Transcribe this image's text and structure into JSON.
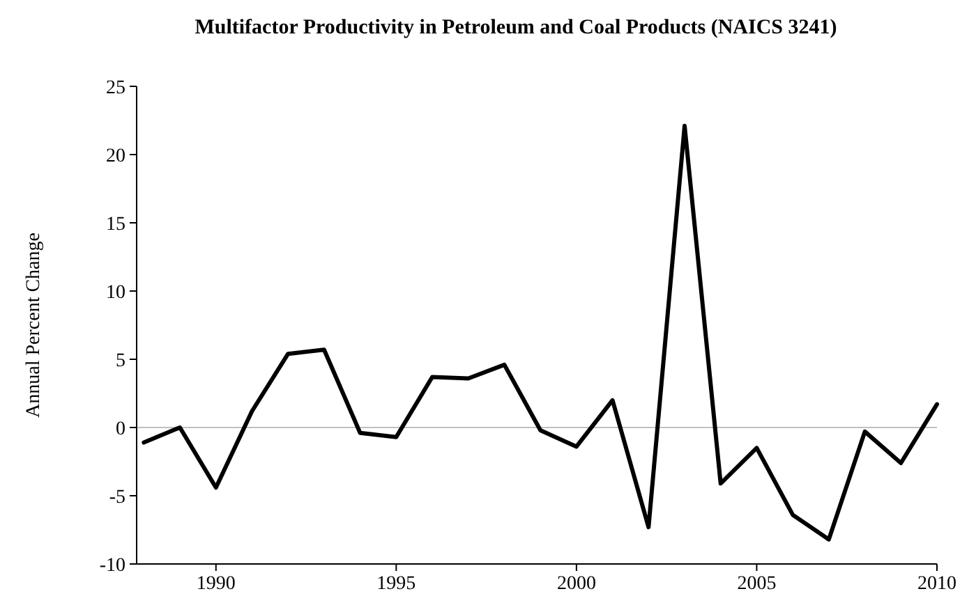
{
  "chart_data": {
    "type": "line",
    "title": "Multifactor Productivity in Petroleum and Coal Products (NAICS 3241)",
    "ylabel": "Annual Percent Change",
    "x": [
      1988,
      1989,
      1990,
      1991,
      1992,
      1993,
      1994,
      1995,
      1996,
      1997,
      1998,
      1999,
      2000,
      2001,
      2002,
      2003,
      2004,
      2005,
      2006,
      2007,
      2008,
      2009,
      2010
    ],
    "series": [
      {
        "color": "#000000",
        "values": [
          -1.1,
          0,
          -4.4,
          1.2,
          5.4,
          5.7,
          -0.4,
          -0.7,
          3.7,
          3.6,
          4.6,
          -0.2,
          -1.4,
          2.0,
          -7.3,
          22.1,
          -4.1,
          -1.5,
          -6.4,
          -8.2,
          -0.3,
          -2.6,
          1.7
        ]
      }
    ],
    "xlim": [
      1987.8,
      2010
    ],
    "xticks": [
      1990,
      1995,
      2000,
      2005,
      2010
    ],
    "ylim": [
      -10,
      25
    ],
    "yticks": [
      -10,
      -5,
      0,
      5,
      10,
      15,
      20,
      25
    ],
    "ref_lines": [
      {
        "axis": "y",
        "value": 0,
        "color": "#c0c0c0"
      }
    ],
    "grid": false,
    "marker": "none",
    "line_style": "solid"
  }
}
